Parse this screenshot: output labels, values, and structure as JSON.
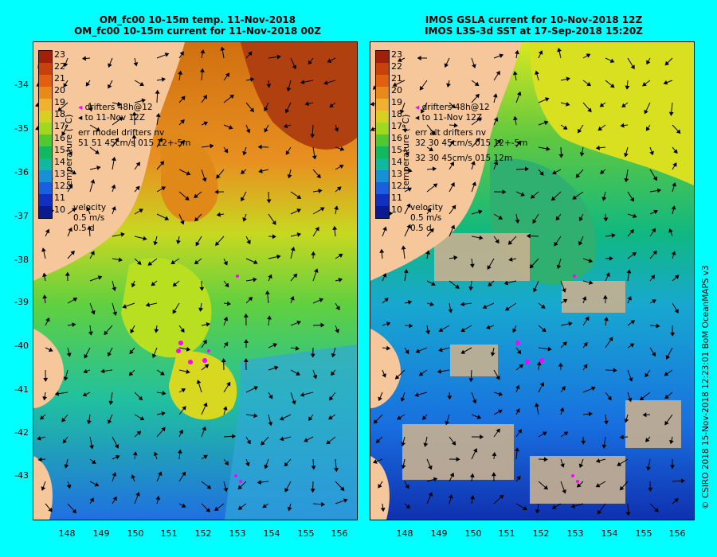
{
  "left_panel": {
    "title_line1": "OM_fc00 10-15m temp. 11-Nov-2018",
    "title_line2": "OM_fc00 10-15m current for 11-Nov-2018 00Z",
    "legend_line1": "drifters 48h@12",
    "legend_line2": "to 11-Nov 12Z",
    "legend_line3": "err model drifters nv",
    "legend_line4": "51 51 45cm/s 015 12+-5m",
    "legend_line5": ""
  },
  "right_panel": {
    "title_line1": "IMOS GSLA current for 10-Nov-2018 12Z",
    "title_line2": "IMOS L3S-3d SST at 17-Sep-2018 15:20Z",
    "legend_line1": "drifters 48h@12",
    "legend_line2": "to 11-Nov 12Z",
    "legend_line3": "err alt drifters nv",
    "legend_line4": "32 30 45cm/s 015 12+-5m",
    "legend_line5": "32 30 45cm/s 015 12m"
  },
  "colorbar": {
    "title": "temperature (°C)",
    "ticks": [
      "23",
      "22",
      "21",
      "20",
      "19",
      "18",
      "17",
      "16",
      "15",
      "14",
      "13",
      "12",
      "11",
      "10"
    ],
    "colors": [
      "#a0200a",
      "#c8400a",
      "#e06010",
      "#e88a1a",
      "#f0b030",
      "#d8d020",
      "#a0d820",
      "#50c830",
      "#10b860",
      "#10b8a0",
      "#1890d8",
      "#1860e0",
      "#1030c0",
      "#0a1a90"
    ]
  },
  "velocity": {
    "label": "velocity",
    "speed": "0.5 m/s",
    "time": "0.5 d"
  },
  "y_ticks": [
    "-34",
    "-35",
    "-36",
    "-37",
    "-38",
    "-39",
    "-40",
    "-41",
    "-42",
    "-43"
  ],
  "x_ticks": [
    "148",
    "149",
    "150",
    "151",
    "152",
    "153",
    "154",
    "155",
    "156"
  ],
  "credit": "© CSIRO 2018  15-Nov-2018 12:23:01 BoM OceanMAPS v3"
}
